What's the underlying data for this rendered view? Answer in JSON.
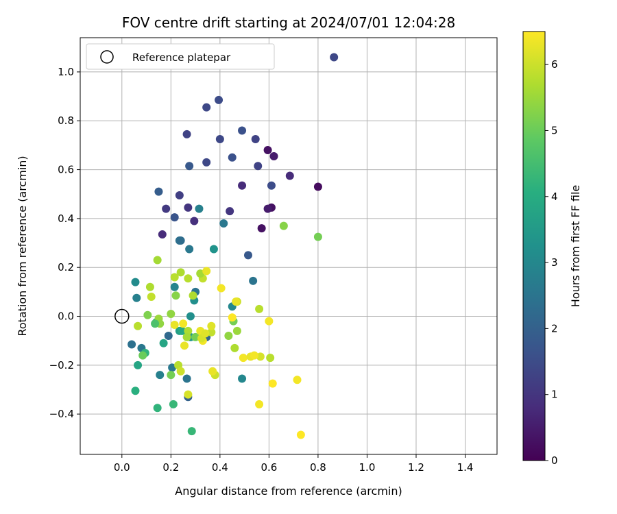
{
  "chart_data": {
    "type": "scatter",
    "title": "FOV centre drift starting at 2024/07/01 12:04:28",
    "xlabel": "Angular distance from reference (arcmin)",
    "ylabel": "Rotation from reference (arcmin)",
    "xlim": [
      -0.17,
      1.53
    ],
    "ylim": [
      -0.565,
      1.14
    ],
    "xticks": [
      "0.0",
      "0.2",
      "0.4",
      "0.6",
      "0.8",
      "1.0",
      "1.2",
      "1.4"
    ],
    "yticks": [
      "−0.4",
      "−0.2",
      "0.0",
      "0.2",
      "0.4",
      "0.6",
      "0.8",
      "1.0"
    ],
    "grid": true,
    "legend": {
      "placement": "top-left",
      "entries": [
        "Reference platepar"
      ]
    },
    "reference_point": {
      "x": 0.0,
      "y": 0.0
    },
    "colorbar": {
      "label": "Hours from first FF file",
      "min": 0,
      "max": 6.5,
      "ticks": [
        "0",
        "1",
        "2",
        "3",
        "4",
        "5",
        "6"
      ],
      "colormap": "viridis"
    },
    "series": [
      {
        "x": [
          0.865,
          0.395,
          0.345,
          0.49,
          0.265,
          0.4,
          0.545,
          0.595,
          0.62,
          0.45,
          0.345,
          0.275,
          0.555,
          0.685,
          0.61,
          0.8,
          0.49,
          0.235,
          0.27,
          0.61,
          0.595,
          0.18,
          0.44,
          0.295,
          0.215,
          0.165,
          0.57,
          0.515
        ],
        "y": [
          1.06,
          0.885,
          0.855,
          0.76,
          0.745,
          0.725,
          0.725,
          0.68,
          0.655,
          0.65,
          0.63,
          0.615,
          0.615,
          0.575,
          0.535,
          0.53,
          0.535,
          0.495,
          0.445,
          0.445,
          0.44,
          0.44,
          0.43,
          0.39,
          0.405,
          0.335,
          0.36,
          0.25
        ],
        "hours": [
          1.4,
          1.5,
          1.4,
          1.6,
          1.3,
          1.4,
          1.3,
          0.3,
          0.5,
          1.6,
          1.4,
          1.8,
          1.3,
          0.8,
          1.5,
          0.2,
          0.8,
          1.2,
          1.0,
          0.3,
          0.5,
          1.1,
          1.0,
          0.9,
          1.7,
          0.8,
          0.3,
          1.8
        ]
      },
      {
        "x": [
          0.15,
          0.315,
          0.415,
          0.235,
          0.375,
          0.275,
          0.24,
          0.3,
          0.535,
          0.055,
          0.215,
          0.295,
          0.06,
          0.45,
          0.28,
          0.14,
          0.19,
          0.28,
          0.345,
          0.04,
          0.08,
          0.49,
          0.155,
          0.265,
          0.205,
          0.27,
          0.235,
          0.065,
          0.17,
          0.055,
          0.285,
          0.095,
          0.145,
          0.21,
          0.245
        ],
        "y": [
          0.51,
          0.44,
          0.38,
          0.31,
          0.275,
          0.275,
          0.31,
          0.1,
          0.145,
          0.14,
          0.12,
          0.065,
          0.075,
          0.04,
          0.0,
          -0.025,
          -0.08,
          -0.085,
          -0.085,
          -0.115,
          -0.13,
          -0.255,
          -0.24,
          -0.255,
          -0.21,
          -0.33,
          -0.06,
          -0.2,
          -0.11,
          -0.305,
          -0.47,
          -0.15,
          -0.375,
          -0.36,
          -0.06
        ],
        "hours": [
          1.9,
          2.8,
          2.6,
          2.4,
          3.3,
          2.6,
          2.3,
          2.5,
          2.5,
          3.1,
          2.9,
          3.2,
          2.8,
          3.0,
          3.2,
          3.1,
          2.2,
          3.4,
          2.1,
          2.4,
          2.6,
          3.0,
          2.8,
          2.5,
          2.6,
          2.0,
          3.6,
          3.8,
          3.8,
          4.1,
          4.3,
          4.2,
          4.2,
          4.3,
          3.9
        ]
      },
      {
        "x": [
          0.66,
          0.8,
          0.145,
          0.24,
          0.27,
          0.33,
          0.215,
          0.32,
          0.115,
          0.12,
          0.29,
          0.22,
          0.47,
          0.56,
          0.105,
          0.2,
          0.065,
          0.15,
          0.155,
          0.135,
          0.455,
          0.3,
          0.27,
          0.265,
          0.435,
          0.47,
          0.365,
          0.085,
          0.23,
          0.2,
          0.24,
          0.46,
          0.565,
          0.605,
          0.38,
          0.27
        ],
        "y": [
          0.37,
          0.325,
          0.23,
          0.18,
          0.155,
          0.155,
          0.16,
          0.175,
          0.12,
          0.08,
          0.085,
          0.085,
          0.06,
          0.03,
          0.005,
          0.01,
          -0.04,
          -0.01,
          -0.03,
          -0.03,
          -0.02,
          -0.085,
          -0.06,
          -0.085,
          -0.08,
          -0.06,
          -0.065,
          -0.16,
          -0.2,
          -0.24,
          -0.225,
          -0.13,
          -0.165,
          -0.17,
          -0.24,
          -0.32
        ],
        "hours": [
          5.3,
          5.1,
          5.6,
          5.7,
          5.8,
          5.9,
          5.8,
          5.6,
          5.7,
          5.9,
          5.7,
          5.3,
          6.0,
          5.8,
          5.2,
          5.4,
          5.8,
          5.5,
          5.4,
          4.6,
          5.1,
          5.1,
          5.7,
          5.6,
          5.4,
          5.5,
          5.9,
          5.0,
          5.8,
          5.1,
          6.0,
          5.7,
          6.1,
          5.8,
          6.0,
          6.1
        ]
      },
      {
        "x": [
          0.345,
          0.405,
          0.465,
          0.45,
          0.6,
          0.215,
          0.25,
          0.32,
          0.365,
          0.33,
          0.325,
          0.255,
          0.34,
          0.495,
          0.525,
          0.54,
          0.37,
          0.715,
          0.615,
          0.56,
          0.73
        ],
        "y": [
          0.185,
          0.115,
          0.06,
          -0.005,
          -0.02,
          -0.035,
          -0.03,
          -0.06,
          -0.04,
          -0.1,
          -0.09,
          -0.12,
          -0.07,
          -0.17,
          -0.165,
          -0.16,
          -0.225,
          -0.26,
          -0.275,
          -0.36,
          -0.485
        ],
        "hours": [
          6.3,
          6.4,
          6.3,
          6.5,
          6.4,
          6.3,
          6.4,
          6.3,
          6.2,
          6.4,
          6.1,
          6.3,
          6.2,
          6.4,
          6.3,
          6.4,
          6.3,
          6.4,
          6.5,
          6.4,
          6.5
        ]
      }
    ]
  }
}
